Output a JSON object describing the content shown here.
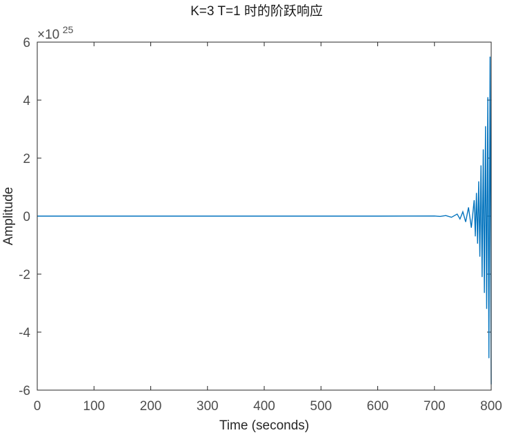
{
  "chart_data": {
    "type": "line",
    "title": "K=3 T=1 时的阶跃响应",
    "xlabel": "Time (seconds)",
    "ylabel": "Amplitude",
    "xlim": [
      0,
      800
    ],
    "ylim": [
      -6,
      6
    ],
    "y_exponent_base": "×10",
    "y_exponent_power": "25",
    "x_ticks": [
      0,
      100,
      200,
      300,
      400,
      500,
      600,
      700,
      800
    ],
    "y_ticks": [
      -6,
      -4,
      -2,
      0,
      2,
      4,
      6
    ],
    "grid": false,
    "series": [
      {
        "color": "#0072BD",
        "note_units": "y in units of 1e25",
        "x": [
          0,
          600,
          700,
          710,
          720,
          730,
          740,
          745,
          750,
          755,
          760,
          765,
          770,
          772,
          774,
          776,
          778,
          780,
          782,
          784,
          786,
          788,
          790,
          792,
          794,
          796,
          798,
          800
        ],
        "y": [
          0,
          0,
          0.005,
          -0.01,
          0.02,
          -0.04,
          0.07,
          -0.1,
          0.15,
          -0.2,
          0.3,
          -0.4,
          0.55,
          -0.7,
          0.8,
          -0.95,
          1.2,
          -1.4,
          1.75,
          -2.1,
          2.3,
          -2.65,
          3.1,
          -3.2,
          4.1,
          -4.9,
          5.5,
          -5.8
        ]
      }
    ]
  }
}
